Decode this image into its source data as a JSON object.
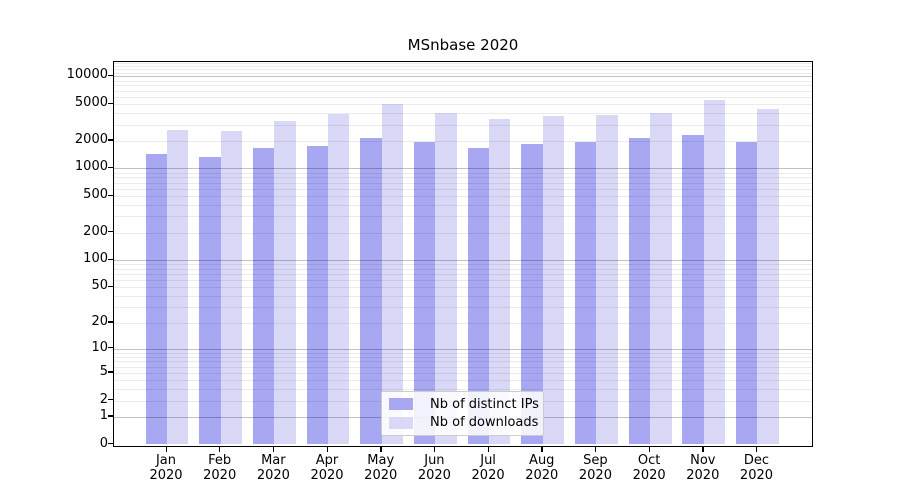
{
  "chart_data": {
    "type": "bar",
    "title": "MSnbase 2020",
    "categories": [
      "Jan",
      "Feb",
      "Mar",
      "Apr",
      "May",
      "Jun",
      "Jul",
      "Aug",
      "Sep",
      "Oct",
      "Nov",
      "Dec"
    ],
    "category_year": "2020",
    "series": [
      {
        "name": "Nb of distinct IPs",
        "color": "#a7a7f2",
        "values": [
          1440,
          1330,
          1670,
          1760,
          2150,
          1940,
          1670,
          1850,
          1940,
          2150,
          2310,
          1940
        ]
      },
      {
        "name": "Nb of downloads",
        "color": "#d9d9f7",
        "values": [
          2620,
          2560,
          3280,
          3910,
          5020,
          4010,
          3450,
          3720,
          3820,
          4010,
          5560,
          4440
        ]
      }
    ],
    "xlabel": "",
    "ylabel": "",
    "yscale": "log1p",
    "y_tick_labels": [
      "10000",
      "5000",
      "2000",
      "1000",
      "500",
      "200",
      "100",
      "50",
      "20",
      "10",
      "5",
      "2",
      "1",
      "0"
    ],
    "ylim": [
      0,
      14300
    ],
    "grid": "both",
    "legend_position": "lower center"
  }
}
